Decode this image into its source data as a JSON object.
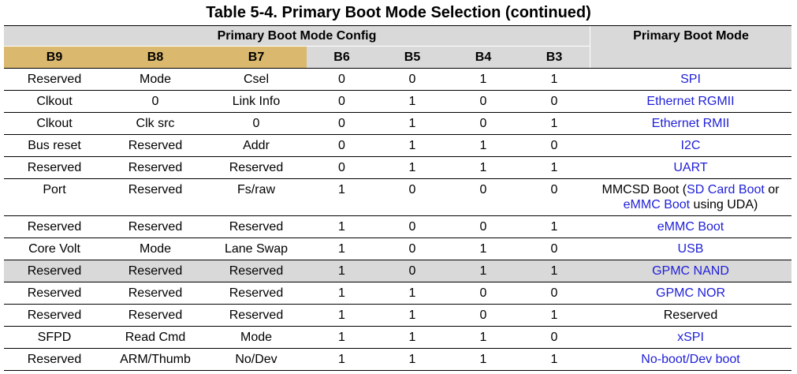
{
  "title": "Table 5-4. Primary Boot Mode Selection (continued)",
  "colors": {
    "header_gray": "#d9d9d9",
    "highlight_tan": "#dab86e",
    "link_blue": "#1f1fd8",
    "selected_row": "#d9d9d9"
  },
  "header": {
    "config_label": "Primary Boot Mode Config",
    "mode_label": "Primary Boot Mode",
    "columns": [
      {
        "label": "B9",
        "highlighted": true
      },
      {
        "label": "B8",
        "highlighted": true
      },
      {
        "label": "B7",
        "highlighted": true
      },
      {
        "label": "B6",
        "highlighted": false
      },
      {
        "label": "B5",
        "highlighted": false
      },
      {
        "label": "B4",
        "highlighted": false
      },
      {
        "label": "B3",
        "highlighted": false
      }
    ]
  },
  "rows": [
    {
      "cells": [
        "Reserved",
        "Mode",
        "Csel",
        "0",
        "0",
        "1",
        "1"
      ],
      "mode": [
        [
          {
            "text": "SPI",
            "link": true
          }
        ]
      ]
    },
    {
      "cells": [
        "Clkout",
        "0",
        "Link Info",
        "0",
        "1",
        "0",
        "0"
      ],
      "mode": [
        [
          {
            "text": "Ethernet RGMII",
            "link": true
          }
        ]
      ]
    },
    {
      "cells": [
        "Clkout",
        "Clk src",
        "0",
        "0",
        "1",
        "0",
        "1"
      ],
      "mode": [
        [
          {
            "text": "Ethernet RMII",
            "link": true
          }
        ]
      ]
    },
    {
      "cells": [
        "Bus reset",
        "Reserved",
        "Addr",
        "0",
        "1",
        "1",
        "0"
      ],
      "mode": [
        [
          {
            "text": "I2C",
            "link": true
          }
        ]
      ]
    },
    {
      "cells": [
        "Reserved",
        "Reserved",
        "Reserved",
        "0",
        "1",
        "1",
        "1"
      ],
      "mode": [
        [
          {
            "text": "UART",
            "link": true
          }
        ]
      ]
    },
    {
      "cells": [
        "Port",
        "Reserved",
        "Fs/raw",
        "1",
        "0",
        "0",
        "0"
      ],
      "mode": [
        [
          {
            "text": "MMCSD Boot (",
            "link": false
          },
          {
            "text": "SD Card Boot",
            "link": true
          },
          {
            "text": " or",
            "link": false
          }
        ],
        [
          {
            "text": "eMMC Boot",
            "link": true
          },
          {
            "text": " using UDA)",
            "link": false
          }
        ]
      ]
    },
    {
      "cells": [
        "Reserved",
        "Reserved",
        "Reserved",
        "1",
        "0",
        "0",
        "1"
      ],
      "mode": [
        [
          {
            "text": "eMMC Boot",
            "link": true
          }
        ]
      ]
    },
    {
      "cells": [
        "Core Volt",
        "Mode",
        "Lane Swap",
        "1",
        "0",
        "1",
        "0"
      ],
      "mode": [
        [
          {
            "text": "USB",
            "link": true
          }
        ]
      ]
    },
    {
      "cells": [
        "Reserved",
        "Reserved",
        "Reserved",
        "1",
        "0",
        "1",
        "1"
      ],
      "mode": [
        [
          {
            "text": "GPMC NAND",
            "link": true
          }
        ]
      ],
      "selected": true
    },
    {
      "cells": [
        "Reserved",
        "Reserved",
        "Reserved",
        "1",
        "1",
        "0",
        "0"
      ],
      "mode": [
        [
          {
            "text": "GPMC NOR",
            "link": true
          }
        ]
      ]
    },
    {
      "cells": [
        "Reserved",
        "Reserved",
        "Reserved",
        "1",
        "1",
        "0",
        "1"
      ],
      "mode": [
        [
          {
            "text": "Reserved",
            "link": false
          }
        ]
      ]
    },
    {
      "cells": [
        "SFPD",
        "Read Cmd",
        "Mode",
        "1",
        "1",
        "1",
        "0"
      ],
      "mode": [
        [
          {
            "text": "xSPI",
            "link": true
          }
        ]
      ]
    },
    {
      "cells": [
        "Reserved",
        "ARM/Thumb",
        "No/Dev",
        "1",
        "1",
        "1",
        "1"
      ],
      "mode": [
        [
          {
            "text": "No-boot/Dev boot",
            "link": true
          }
        ]
      ]
    }
  ]
}
